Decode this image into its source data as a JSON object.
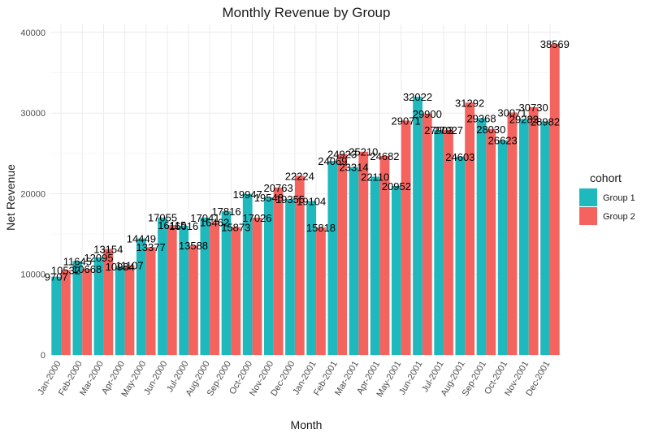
{
  "chart_data": {
    "type": "bar",
    "title": "Monthly Revenue by Group",
    "xlabel": "Month",
    "ylabel": "Net Revenue",
    "ylim": [
      0,
      41000
    ],
    "yticks": [
      0,
      10000,
      20000,
      30000,
      40000
    ],
    "grid": true,
    "legend": {
      "title": "cohort",
      "position": "right"
    },
    "categories": [
      "Jan-2000",
      "Feb-2000",
      "Mar-2000",
      "Apr-2000",
      "May-2000",
      "Jun-2000",
      "Jul-2000",
      "Aug-2000",
      "Sep-2000",
      "Oct-2000",
      "Nov-2000",
      "Dec-2000",
      "Jan-2001",
      "Feb-2001",
      "Mar-2001",
      "Apr-2001",
      "May-2001",
      "Jun-2001",
      "Jul-2001",
      "Aug-2001",
      "Sep-2001",
      "Oct-2001",
      "Nov-2001",
      "Dec-2001"
    ],
    "series": [
      {
        "name": "Group 1",
        "color": "#1fb8bd",
        "values": [
          9707,
          11645,
          12095,
          10984,
          14449,
          17055,
          16016,
          17041,
          17816,
          19947,
          19548,
          19355,
          19104,
          24069,
          23314,
          22110,
          20952,
          32022,
          27903,
          24603,
          29368,
          26623,
          29283,
          28982
        ]
      },
      {
        "name": "Group 2",
        "color": "#f5635f",
        "values": [
          10532,
          10668,
          13154,
          11107,
          13377,
          16115,
          13588,
          16462,
          15873,
          17026,
          20763,
          22224,
          15818,
          24923,
          25210,
          24682,
          29071,
          29900,
          27927,
          31292,
          28030,
          30071,
          30730,
          38569
        ]
      }
    ]
  }
}
